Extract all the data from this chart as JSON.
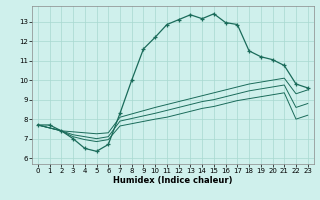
{
  "xlabel": "Humidex (Indice chaleur)",
  "xlim": [
    -0.5,
    23.5
  ],
  "ylim": [
    5.7,
    13.8
  ],
  "yticks": [
    6,
    7,
    8,
    9,
    10,
    11,
    12,
    13
  ],
  "xticks": [
    0,
    1,
    2,
    3,
    4,
    5,
    6,
    7,
    8,
    9,
    10,
    11,
    12,
    13,
    14,
    15,
    16,
    17,
    18,
    19,
    20,
    21,
    22,
    23
  ],
  "bg_color": "#cff0ec",
  "line_color": "#1a6b5a",
  "grid_color": "#a8d8d0",
  "line1_x": [
    0,
    1,
    2,
    3,
    4,
    5,
    6,
    7,
    8,
    9,
    10,
    11,
    12,
    13,
    14,
    15,
    16,
    17,
    18,
    19,
    20,
    21,
    22,
    23
  ],
  "line1_y": [
    7.7,
    7.7,
    7.4,
    7.0,
    6.5,
    6.35,
    6.7,
    8.3,
    10.0,
    11.6,
    12.2,
    12.85,
    13.1,
    13.35,
    13.15,
    13.4,
    12.95,
    12.85,
    11.5,
    11.2,
    11.05,
    10.75,
    9.8,
    9.6
  ],
  "line2_x": [
    0,
    2,
    3,
    4,
    5,
    6,
    7,
    10,
    11,
    12,
    13,
    14,
    15,
    16,
    17,
    18,
    19,
    20,
    21,
    22,
    23
  ],
  "line2_y": [
    7.7,
    7.4,
    7.35,
    7.3,
    7.25,
    7.3,
    8.1,
    8.6,
    8.75,
    8.9,
    9.05,
    9.2,
    9.35,
    9.5,
    9.65,
    9.8,
    9.9,
    10.0,
    10.1,
    9.3,
    9.5
  ],
  "line3_x": [
    0,
    2,
    3,
    4,
    5,
    6,
    7,
    10,
    11,
    12,
    13,
    14,
    15,
    16,
    17,
    18,
    19,
    20,
    21,
    22,
    23
  ],
  "line3_y": [
    7.7,
    7.4,
    7.2,
    7.1,
    7.0,
    7.1,
    7.9,
    8.3,
    8.45,
    8.6,
    8.75,
    8.9,
    9.0,
    9.15,
    9.3,
    9.45,
    9.55,
    9.65,
    9.75,
    8.6,
    8.8
  ],
  "line4_x": [
    0,
    2,
    3,
    4,
    5,
    6,
    7,
    10,
    11,
    12,
    13,
    14,
    15,
    16,
    17,
    18,
    19,
    20,
    21,
    22,
    23
  ],
  "line4_y": [
    7.7,
    7.4,
    7.1,
    6.95,
    6.85,
    6.95,
    7.65,
    8.0,
    8.1,
    8.25,
    8.4,
    8.55,
    8.65,
    8.8,
    8.95,
    9.05,
    9.15,
    9.25,
    9.35,
    8.0,
    8.2
  ]
}
